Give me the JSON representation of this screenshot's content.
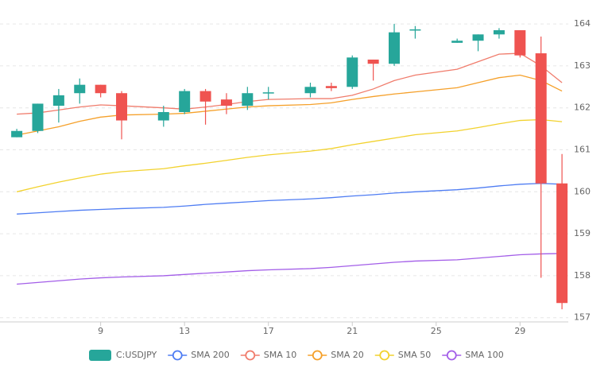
{
  "chart_data": {
    "type": "candlestick",
    "name": "C:USDJPY",
    "x": [
      5,
      6,
      7,
      8,
      9,
      10,
      12,
      13,
      14,
      15,
      16,
      17,
      19,
      20,
      21,
      22,
      23,
      24,
      26,
      27,
      28,
      29,
      30,
      31
    ],
    "open": [
      161.3,
      161.45,
      162.05,
      162.35,
      162.55,
      162.35,
      161.7,
      161.9,
      162.4,
      162.2,
      162.05,
      162.35,
      162.35,
      162.52,
      162.5,
      163.15,
      163.05,
      163.85,
      163.55,
      163.6,
      163.75,
      163.85,
      163.3,
      160.2
    ],
    "high": [
      161.5,
      162.1,
      162.45,
      162.7,
      162.55,
      162.4,
      162.05,
      162.45,
      162.45,
      162.35,
      162.5,
      162.5,
      162.6,
      162.6,
      163.25,
      163.15,
      164.0,
      163.95,
      163.65,
      163.75,
      163.9,
      163.85,
      163.7,
      160.9
    ],
    "low": [
      161.3,
      161.4,
      161.65,
      162.1,
      162.25,
      161.25,
      161.55,
      161.85,
      161.6,
      161.85,
      161.95,
      162.2,
      162.25,
      162.4,
      162.45,
      162.65,
      163.0,
      163.65,
      163.55,
      163.35,
      163.65,
      163.2,
      157.95,
      157.2
    ],
    "close": [
      161.45,
      162.1,
      162.3,
      162.55,
      162.35,
      161.7,
      161.9,
      162.4,
      162.15,
      162.05,
      162.35,
      162.37,
      162.5,
      162.47,
      163.2,
      163.05,
      163.8,
      163.87,
      163.6,
      163.75,
      163.85,
      163.25,
      160.2,
      157.35
    ],
    "up_color": "#26a69a",
    "down_color": "#ef5350",
    "series": [
      {
        "name": "SMA 200",
        "color": "#4f7df3",
        "values": [
          159.47,
          159.5,
          159.53,
          159.56,
          159.58,
          159.6,
          159.63,
          159.66,
          159.7,
          159.73,
          159.76,
          159.79,
          159.83,
          159.86,
          159.9,
          159.93,
          159.97,
          160.0,
          160.05,
          160.09,
          160.14,
          160.18,
          160.2,
          160.18
        ]
      },
      {
        "name": "SMA 10",
        "color": "#f07c6c",
        "values": [
          161.85,
          161.88,
          161.95,
          162.02,
          162.07,
          162.05,
          162.0,
          161.97,
          162.02,
          162.08,
          162.15,
          162.2,
          162.22,
          162.22,
          162.3,
          162.45,
          162.65,
          162.78,
          162.92,
          163.1,
          163.28,
          163.3,
          163.0,
          162.6
        ]
      },
      {
        "name": "SMA 20",
        "color": "#f5a02a",
        "values": [
          161.35,
          161.45,
          161.55,
          161.68,
          161.78,
          161.83,
          161.85,
          161.87,
          161.92,
          161.97,
          162.02,
          162.05,
          162.08,
          162.12,
          162.2,
          162.27,
          162.33,
          162.38,
          162.48,
          162.6,
          162.72,
          162.78,
          162.65,
          162.4
        ]
      },
      {
        "name": "SMA 50",
        "color": "#f2d22e",
        "values": [
          160.0,
          160.12,
          160.23,
          160.33,
          160.42,
          160.48,
          160.55,
          160.62,
          160.68,
          160.75,
          160.82,
          160.88,
          160.97,
          161.03,
          161.12,
          161.2,
          161.28,
          161.36,
          161.45,
          161.53,
          161.62,
          161.7,
          161.72,
          161.67
        ]
      },
      {
        "name": "SMA 100",
        "color": "#a35ee8",
        "values": [
          157.8,
          157.84,
          157.88,
          157.92,
          157.95,
          157.97,
          158.0,
          158.03,
          158.06,
          158.09,
          158.12,
          158.14,
          158.17,
          158.2,
          158.24,
          158.28,
          158.32,
          158.35,
          158.38,
          158.42,
          158.46,
          158.5,
          158.52,
          158.53
        ]
      }
    ],
    "xlim": [
      4.2,
      31.3
    ],
    "xticks": [
      9,
      13,
      17,
      21,
      25,
      29
    ],
    "ylim": [
      156.9,
      164.57
    ],
    "yticks": [
      157,
      158,
      159,
      160,
      161,
      162,
      163,
      164
    ],
    "grid": true
  }
}
